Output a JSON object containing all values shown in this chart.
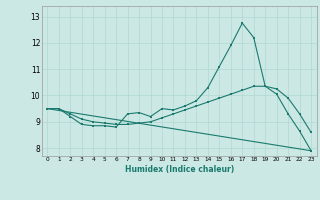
{
  "xlabel": "Humidex (Indice chaleur)",
  "bg_color": "#cce8e4",
  "line_color": "#1a7a6e",
  "grid_color": "#b0d8d4",
  "xlim": [
    -0.5,
    23.5
  ],
  "ylim": [
    7.7,
    13.4
  ],
  "xticks": [
    0,
    1,
    2,
    3,
    4,
    5,
    6,
    7,
    8,
    9,
    10,
    11,
    12,
    13,
    14,
    15,
    16,
    17,
    18,
    19,
    20,
    21,
    22,
    23
  ],
  "yticks": [
    8,
    9,
    10,
    11,
    12,
    13
  ],
  "series1_x": [
    0,
    1,
    2,
    3,
    4,
    5,
    6,
    7,
    8,
    9,
    10,
    11,
    12,
    13,
    14,
    15,
    16,
    17,
    18,
    19,
    20,
    21,
    22,
    23
  ],
  "series1_y": [
    9.5,
    9.5,
    9.2,
    8.9,
    8.85,
    8.85,
    8.8,
    9.3,
    9.35,
    9.2,
    9.5,
    9.45,
    9.6,
    9.8,
    10.3,
    11.1,
    11.9,
    12.75,
    12.2,
    10.35,
    10.05,
    9.3,
    8.65,
    7.9
  ],
  "series2_x": [
    0,
    1,
    2,
    3,
    4,
    5,
    6,
    7,
    8,
    9,
    10,
    11,
    12,
    13,
    14,
    15,
    16,
    17,
    18,
    19,
    20,
    21,
    22,
    23
  ],
  "series2_y": [
    9.5,
    9.5,
    9.3,
    9.1,
    9.0,
    8.95,
    8.9,
    8.9,
    8.95,
    9.0,
    9.15,
    9.3,
    9.45,
    9.6,
    9.75,
    9.9,
    10.05,
    10.2,
    10.35,
    10.35,
    10.25,
    9.9,
    9.3,
    8.6
  ],
  "series3_x": [
    0,
    23
  ],
  "series3_y": [
    9.5,
    7.9
  ]
}
